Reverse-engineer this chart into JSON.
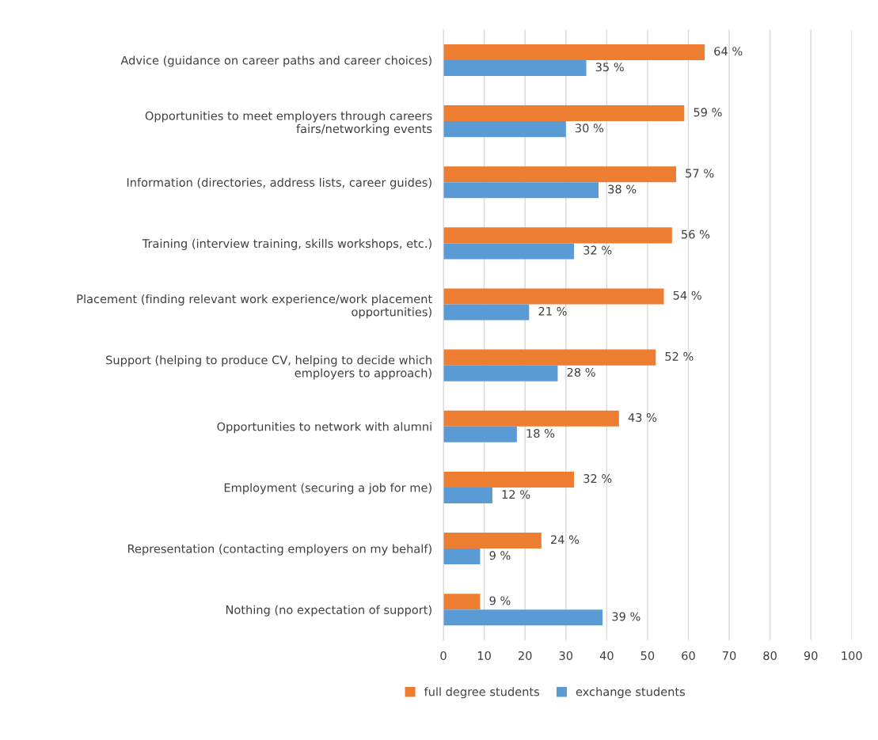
{
  "chart_data": {
    "type": "bar",
    "orientation": "horizontal",
    "categories": [
      "Advice (guidance on career paths and career choices)",
      "Opportunities to meet employers through careers fairs/networking events",
      "Information (directories, address lists, career guides)",
      "Training (interview training, skills workshops, etc.)",
      "Placement (finding relevant work experience/work placement opportunities)",
      "Support (helping to produce CV, helping to decide which employers to approach)",
      "Opportunities to network with alumni",
      "Employment (securing a job for me)",
      "Representation (contacting employers on my behalf)",
      "Nothing (no expectation of support)"
    ],
    "series": [
      {
        "name": "full degree students",
        "color": "#ed7d31",
        "values": [
          64,
          59,
          57,
          56,
          54,
          52,
          43,
          32,
          24,
          9
        ],
        "value_labels": [
          "64 %",
          "59 %",
          "57 %",
          "56 %",
          "54 %",
          "52 %",
          "43 %",
          "32 %",
          "24 %",
          "9 %"
        ]
      },
      {
        "name": "exchange students",
        "color": "#5b9bd5",
        "values": [
          35,
          30,
          38,
          32,
          21,
          28,
          18,
          12,
          9,
          39
        ],
        "value_labels": [
          "35 %",
          "30 %",
          "38 %",
          "32 %",
          "21 %",
          "28 %",
          "18 %",
          "12 %",
          "9 %",
          "39 %"
        ]
      }
    ],
    "xlim": [
      0,
      100
    ],
    "xticks": [
      0,
      10,
      20,
      30,
      40,
      50,
      60,
      70,
      80,
      90,
      100
    ],
    "grid": "x",
    "legend": "bottom"
  }
}
